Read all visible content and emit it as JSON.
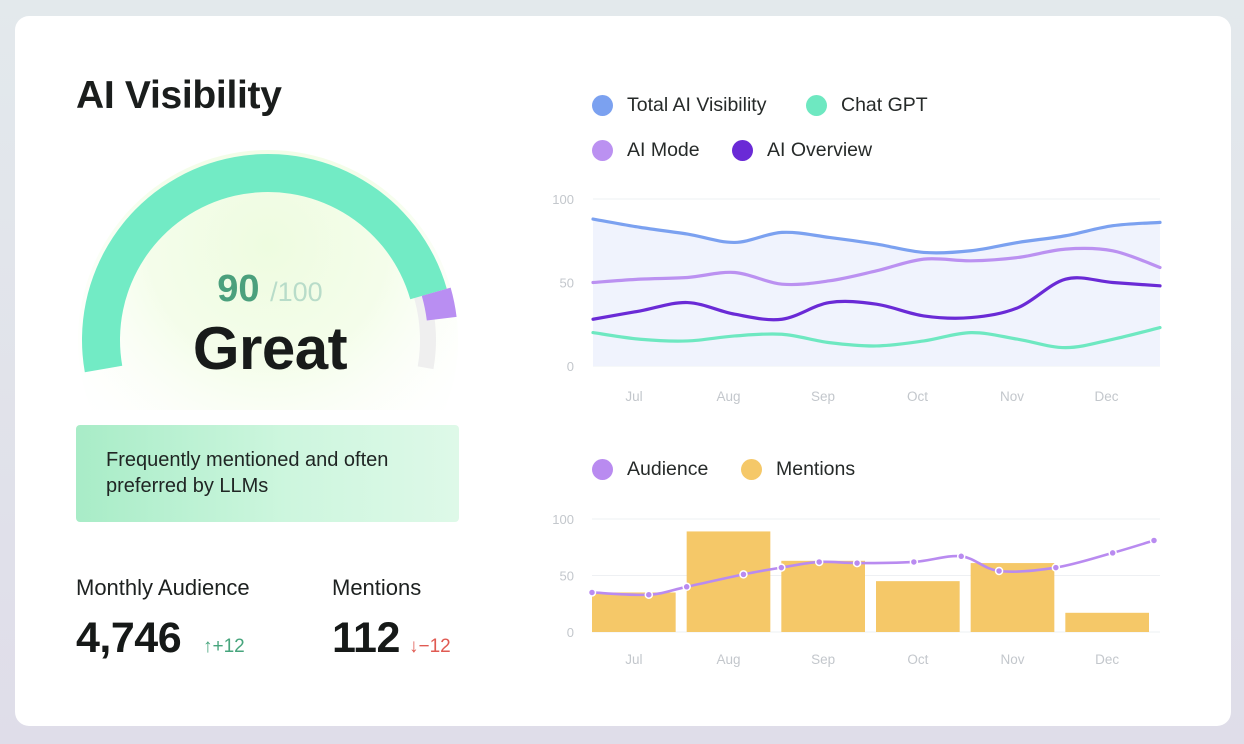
{
  "colors": {
    "total": "#7ba1f0",
    "chatgpt": "#6ee8c1",
    "aimode": "#bb91f1",
    "overview": "#6a2ad6",
    "audience": "#b98bf0",
    "mentions": "#f5c868",
    "gauge_green": "#72ebc5",
    "gauge_purple": "#b98ef2",
    "gauge_gray": "#efefef"
  },
  "title": "AI Visibility",
  "gauge": {
    "score": "90",
    "out_of": "/100",
    "rating": "Great",
    "score_fraction": 0.9
  },
  "description": "Frequently mentioned and often preferred by LLMs",
  "stats": {
    "audience": {
      "label": "Monthly Audience",
      "value": "4,746",
      "delta": "+12",
      "direction": "up"
    },
    "mentions": {
      "label": "Mentions",
      "value": "112",
      "delta": "−12",
      "direction": "down"
    }
  },
  "legend_top": [
    {
      "label": "Total AI Visibility",
      "icon": "circle",
      "color": "#7ba1f0"
    },
    {
      "label": "Chat GPT",
      "icon": "circle",
      "color": "#6ee8c1"
    },
    {
      "label": "AI Mode",
      "icon": "circle",
      "color": "#bb91f1"
    },
    {
      "label": "AI Overview",
      "icon": "circle",
      "color": "#6a2ad6"
    }
  ],
  "legend_bottom": [
    {
      "label": "Audience",
      "icon": "circle",
      "color": "#b98bf0"
    },
    {
      "label": "Mentions",
      "icon": "circle",
      "color": "#f5c868"
    }
  ],
  "chart_data": [
    {
      "type": "line",
      "title": "",
      "xlabel": "",
      "ylabel": "",
      "ylim": [
        0,
        100
      ],
      "y_ticks": [
        "100",
        "50",
        "0"
      ],
      "categories": [
        "Jul",
        "Aug",
        "Sep",
        "Oct",
        "Nov",
        "Dec"
      ],
      "x": [
        0,
        0.5,
        1,
        1.5,
        2,
        2.5,
        3,
        3.5,
        4,
        4.5,
        5,
        5.5,
        6
      ],
      "series": [
        {
          "name": "Total AI Visibility",
          "key": "total",
          "filled": true,
          "values": [
            88,
            83,
            79,
            74,
            80,
            77,
            73,
            68,
            69,
            74,
            78,
            84,
            86
          ]
        },
        {
          "name": "AI Mode",
          "key": "aimode",
          "values": [
            50,
            52,
            53,
            56,
            49,
            51,
            57,
            64,
            63,
            65,
            70,
            69,
            59
          ]
        },
        {
          "name": "AI Overview",
          "key": "overview",
          "values": [
            28,
            33,
            38,
            31,
            28,
            38,
            37,
            30,
            29,
            35,
            52,
            50,
            48
          ]
        },
        {
          "name": "Chat GPT",
          "key": "chatgpt",
          "values": [
            20,
            16,
            15,
            18,
            19,
            14,
            12,
            15,
            20,
            16,
            11,
            16,
            23
          ]
        }
      ]
    },
    {
      "type": "bar",
      "title": "",
      "xlabel": "",
      "ylabel": "",
      "ylim": [
        0,
        100
      ],
      "y_ticks": [
        "100",
        "50",
        "0"
      ],
      "categories": [
        "Jul",
        "Aug",
        "Sep",
        "Oct",
        "Nov",
        "Dec"
      ],
      "series": [
        {
          "name": "Mentions",
          "key": "mentions",
          "type": "bar",
          "values": [
            35,
            89,
            63,
            45,
            61,
            17
          ]
        },
        {
          "name": "Audience",
          "key": "audience",
          "type": "line",
          "x": [
            0,
            0.6,
            1,
            1.6,
            2,
            2.4,
            2.8,
            3.4,
            3.9,
            4.3,
            4.9,
            5.5
          ],
          "values": [
            35,
            33,
            40,
            51,
            57,
            62,
            61,
            62,
            67,
            54,
            57,
            70
          ],
          "end_value": 81
        }
      ]
    }
  ]
}
